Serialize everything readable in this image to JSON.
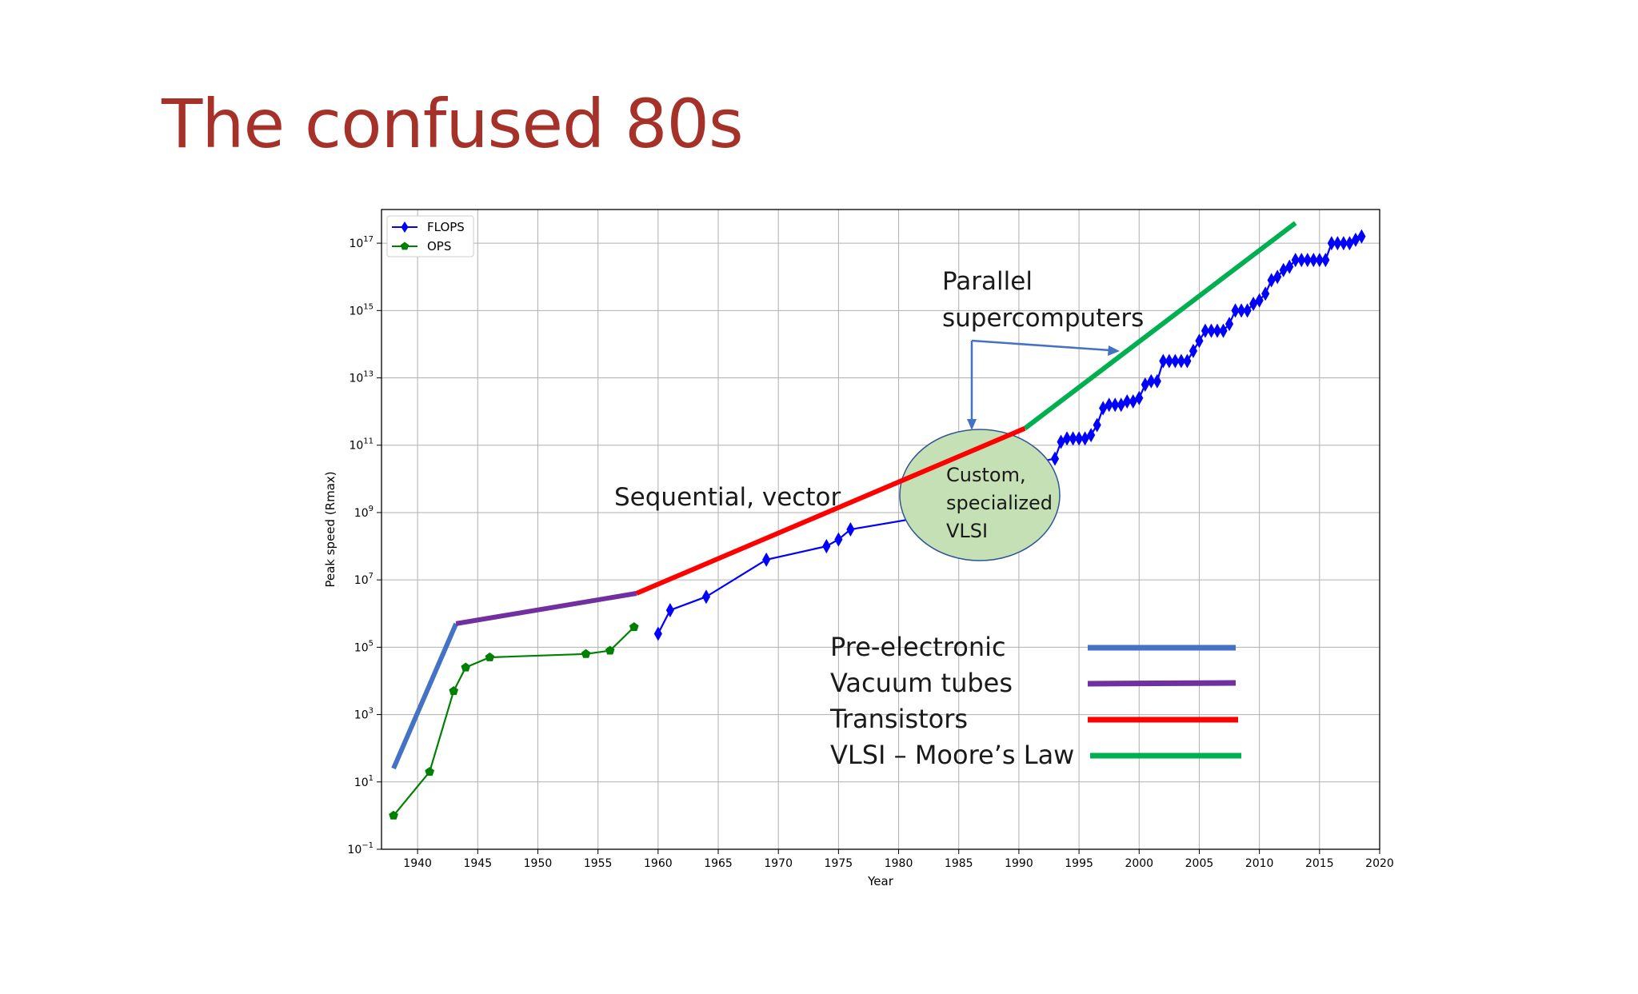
{
  "slide": {
    "title": "The confused 80s"
  },
  "colors": {
    "title": "#a53128",
    "flops": "#0000ff",
    "ops": "#008000",
    "pre_electronic": "#4472c4",
    "vacuum_tubes": "#7030a0",
    "transistors": "#ff0000",
    "vlsi": "#00b050",
    "bubble_fill": "#c5e0b4",
    "bubble_stroke": "#2f5597",
    "arrow": "#4472c4"
  },
  "chart_data": {
    "type": "line",
    "xlabel": "Year",
    "ylabel": "Peak speed (Rmax)",
    "xlim": [
      1937,
      2020
    ],
    "ylim_log10": [
      -1,
      18
    ],
    "y_scale": "log",
    "grid": true,
    "legend_position": "upper-left",
    "x_ticks": [
      1940,
      1945,
      1950,
      1955,
      1960,
      1965,
      1970,
      1975,
      1980,
      1985,
      1990,
      1995,
      2000,
      2005,
      2010,
      2015,
      2020
    ],
    "y_tick_exponents": [
      "−1",
      "1",
      "3",
      "5",
      "7",
      "9",
      "11",
      "13",
      "15",
      "17"
    ],
    "y_tick_base": "10",
    "series": [
      {
        "name": "FLOPS",
        "marker": "diamond",
        "x": [
          1960,
          1961,
          1964,
          1969,
          1974,
          1975,
          1976,
          1981,
          1983,
          1985,
          1987,
          1989,
          1990,
          1993,
          1993.5,
          1994,
          1994.5,
          1995,
          1995.5,
          1996,
          1996.5,
          1997,
          1997.5,
          1998,
          1998.5,
          1999,
          1999.5,
          2000,
          2000.5,
          2001,
          2001.5,
          2002,
          2002.5,
          2003,
          2003.5,
          2004,
          2004.5,
          2005,
          2005.5,
          2006,
          2006.5,
          2007,
          2007.5,
          2008,
          2008.5,
          2009,
          2009.5,
          2010,
          2010.5,
          2011,
          2011.5,
          2012,
          2012.5,
          2013,
          2013.5,
          2014,
          2014.5,
          2015,
          2015.5,
          2016,
          2016.5,
          2017,
          2017.5,
          2018,
          2018.5
        ],
        "log10_values": [
          5.4,
          6.1,
          6.5,
          7.6,
          8.0,
          8.2,
          8.5,
          8.8,
          9.2,
          9.5,
          9.8,
          10.2,
          10.4,
          10.6,
          11.1,
          11.2,
          11.2,
          11.2,
          11.2,
          11.3,
          11.6,
          12.1,
          12.2,
          12.2,
          12.2,
          12.3,
          12.3,
          12.4,
          12.8,
          12.9,
          12.9,
          13.5,
          13.5,
          13.5,
          13.5,
          13.5,
          13.8,
          14.1,
          14.4,
          14.4,
          14.4,
          14.4,
          14.6,
          15.0,
          15.0,
          15.0,
          15.2,
          15.3,
          15.5,
          15.9,
          16.0,
          16.2,
          16.3,
          16.5,
          16.5,
          16.5,
          16.5,
          16.5,
          16.5,
          17.0,
          17.0,
          17.0,
          17.0,
          17.1,
          17.2
        ]
      },
      {
        "name": "OPS",
        "marker": "pentagon",
        "x": [
          1938,
          1941,
          1943,
          1944,
          1946,
          1954,
          1956,
          1958
        ],
        "log10_values": [
          0.0,
          1.3,
          3.7,
          4.4,
          4.7,
          4.8,
          4.9,
          5.6
        ]
      }
    ],
    "trend_lines": [
      {
        "label": "Pre-electronic",
        "x": [
          1938,
          1943.2
        ],
        "log10_values": [
          1.4,
          5.7
        ]
      },
      {
        "label": "Vacuum tubes",
        "x": [
          1943.2,
          1958.2
        ],
        "log10_values": [
          5.7,
          6.6
        ]
      },
      {
        "label": "Transistors",
        "x": [
          1958.2,
          1990.5
        ],
        "log10_values": [
          6.6,
          11.5
        ]
      },
      {
        "label": "VLSI – Moore’s Law",
        "x": [
          1990.5,
          2013
        ],
        "log10_values": [
          11.5,
          17.6
        ]
      }
    ],
    "annotations": {
      "parallel_line1": "Parallel",
      "parallel_line2": "supercomputers",
      "sequential": "Sequential, vector",
      "bubble_line1": "Custom,",
      "bubble_line2": "specialized",
      "bubble_line3": "VLSI"
    }
  }
}
